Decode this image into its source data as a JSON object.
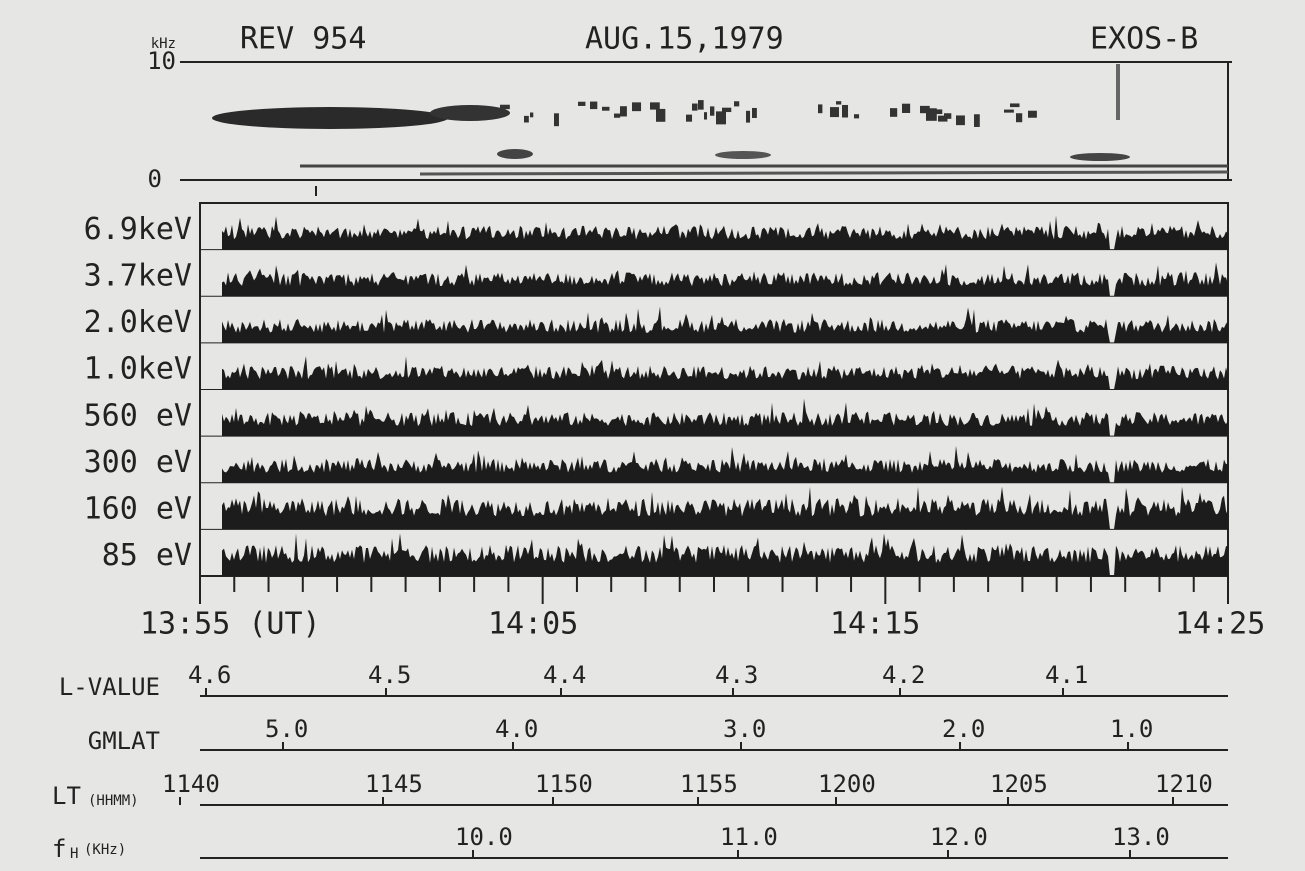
{
  "header": {
    "rev": "REV 954",
    "date": "AUG.15,1979",
    "satellite": "EXOS-B"
  },
  "spectrogram": {
    "unit": "kHz",
    "top_label": "10",
    "bottom_label": "0"
  },
  "channels": [
    "6.9keV",
    "3.7keV",
    "2.0keV",
    "1.0keV",
    "560 eV",
    "300 eV",
    "160 eV",
    "85 eV"
  ],
  "time_axis": [
    "13:55 (UT)",
    "14:05",
    "14:15",
    "14:25"
  ],
  "scales": [
    {
      "label": "L-VALUE",
      "values": [
        "4.6",
        "4.5",
        "4.4",
        "4.3",
        "4.2",
        "4.1"
      ]
    },
    {
      "label": "GMLAT",
      "values": [
        "5.0",
        "4.0",
        "3.0",
        "2.0",
        "1.0"
      ]
    },
    {
      "label": "LT",
      "unit": "(HHMM)",
      "values": [
        "1140",
        "1145",
        "1150",
        "1155",
        "1200",
        "1205",
        "1210"
      ]
    },
    {
      "label": "f",
      "subscript": "H",
      "unit": "(KHz)",
      "values": [
        "10.0",
        "11.0",
        "12.0",
        "13.0"
      ]
    }
  ]
}
